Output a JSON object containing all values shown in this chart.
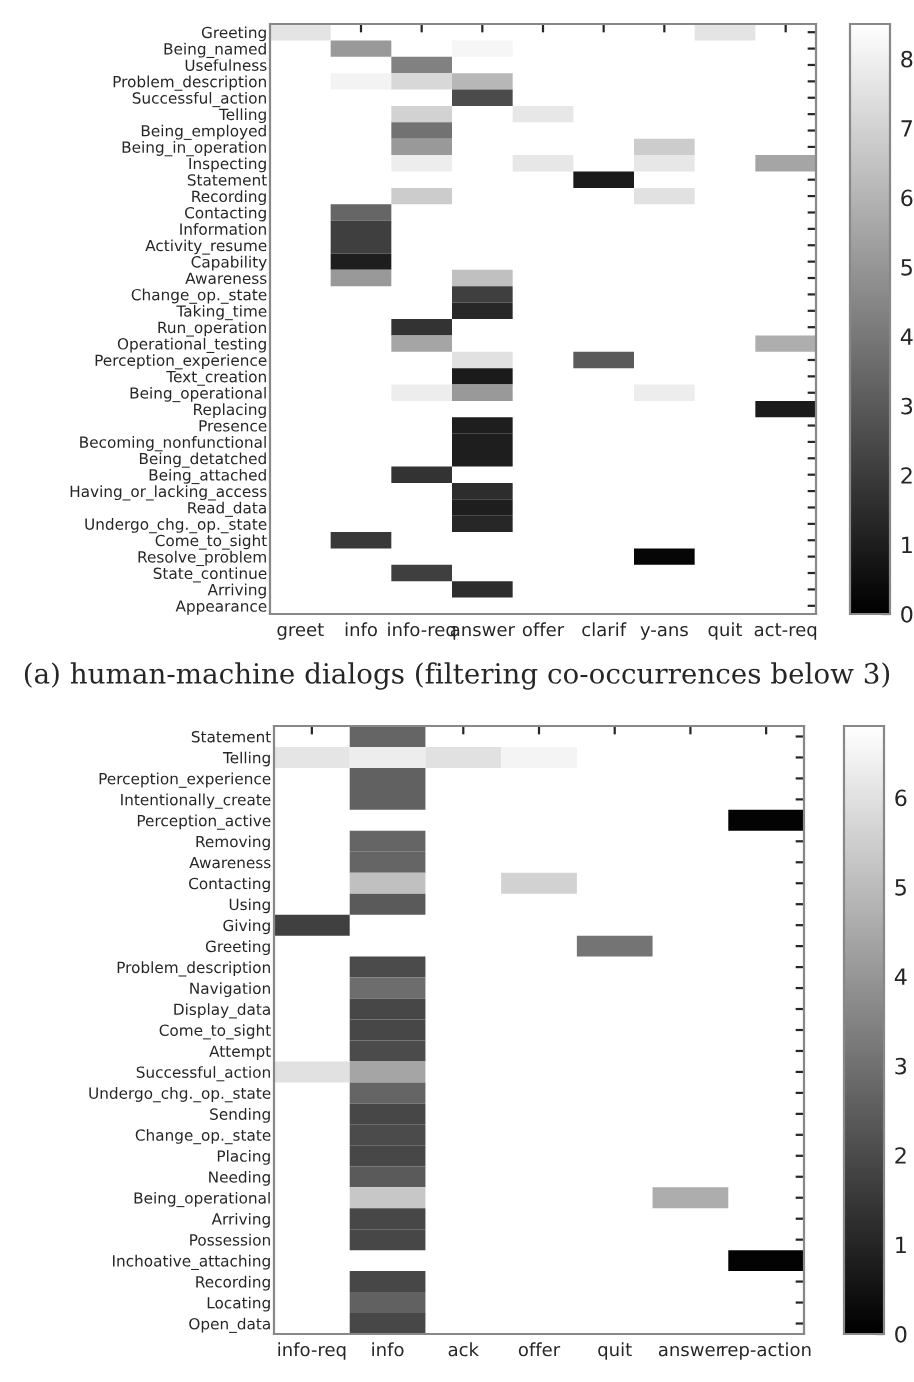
{
  "chart_data": [
    {
      "type": "heatmap",
      "categories": [
        "greet",
        "info",
        "info-req",
        "answer",
        "offer",
        "clarif",
        "y-ans",
        "quit",
        "act-req"
      ],
      "y_categories": [
        "Greeting",
        "Being_named",
        "Usefulness",
        "Problem_description",
        "Successful_action",
        "Telling",
        "Being_employed",
        "Being_in_operation",
        "Inspecting",
        "Statement",
        "Recording",
        "Contacting",
        "Information",
        "Activity_resume",
        "Capability",
        "Awareness",
        "Change_op._state",
        "Taking_time",
        "Run_operation",
        "Operational_testing",
        "Perception_experience",
        "Text_creation",
        "Being_operational",
        "Replacing",
        "Presence",
        "Becoming_nonfunctional",
        "Being_detatched",
        "Being_attached",
        "Having_or_lacking_access",
        "Read_data",
        "Undergo_chg._op._state",
        "Come_to_sight",
        "Resolve_problem",
        "State_continue",
        "Arriving",
        "Appearance"
      ],
      "cells": [
        [
          7.6,
          null,
          null,
          null,
          null,
          null,
          null,
          7.6,
          null
        ],
        [
          null,
          5.1,
          null,
          8.2,
          null,
          null,
          null,
          null,
          null
        ],
        [
          null,
          null,
          4.3,
          null,
          null,
          null,
          null,
          null,
          null
        ],
        [
          null,
          8.1,
          7.2,
          6.1,
          null,
          null,
          null,
          null,
          null
        ],
        [
          null,
          null,
          null,
          2.5,
          null,
          null,
          null,
          null,
          null
        ],
        [
          null,
          null,
          7.0,
          null,
          7.7,
          null,
          null,
          null,
          null
        ],
        [
          null,
          null,
          3.8,
          null,
          null,
          null,
          null,
          null,
          null
        ],
        [
          null,
          null,
          5.1,
          null,
          null,
          null,
          6.8,
          null,
          null
        ],
        [
          null,
          null,
          7.9,
          null,
          7.7,
          null,
          7.7,
          null,
          5.5
        ],
        [
          null,
          null,
          null,
          null,
          null,
          0.9,
          null,
          null,
          null
        ],
        [
          null,
          null,
          6.8,
          null,
          null,
          null,
          7.5,
          null,
          null
        ],
        [
          null,
          3.4,
          null,
          null,
          null,
          null,
          null,
          null,
          null
        ],
        [
          null,
          2.1,
          null,
          null,
          null,
          null,
          null,
          null,
          null
        ],
        [
          null,
          2.1,
          null,
          null,
          null,
          null,
          null,
          null,
          null
        ],
        [
          null,
          1.0,
          null,
          null,
          null,
          null,
          null,
          null,
          null
        ],
        [
          null,
          5.1,
          null,
          6.4,
          null,
          null,
          null,
          null,
          null
        ],
        [
          null,
          null,
          null,
          2.1,
          null,
          null,
          null,
          null,
          null
        ],
        [
          null,
          null,
          null,
          1.3,
          null,
          null,
          null,
          null,
          null
        ],
        [
          null,
          null,
          1.7,
          null,
          null,
          null,
          null,
          null,
          null
        ],
        [
          null,
          null,
          5.5,
          null,
          null,
          null,
          null,
          null,
          5.8
        ],
        [
          null,
          null,
          null,
          7.5,
          null,
          3.0,
          null,
          null,
          null
        ],
        [
          null,
          null,
          null,
          0.9,
          null,
          null,
          null,
          null,
          null
        ],
        [
          null,
          null,
          7.9,
          5.1,
          null,
          null,
          7.9,
          null,
          null
        ],
        [
          null,
          null,
          null,
          null,
          null,
          null,
          null,
          null,
          0.9
        ],
        [
          null,
          null,
          null,
          1.0,
          null,
          null,
          null,
          null,
          null
        ],
        [
          null,
          null,
          null,
          1.0,
          null,
          null,
          null,
          null,
          null
        ],
        [
          null,
          null,
          null,
          1.0,
          null,
          null,
          null,
          null,
          null
        ],
        [
          null,
          null,
          1.7,
          null,
          null,
          null,
          null,
          null,
          null
        ],
        [
          null,
          null,
          null,
          1.5,
          null,
          null,
          null,
          null,
          null
        ],
        [
          null,
          null,
          null,
          1.0,
          null,
          null,
          null,
          null,
          null
        ],
        [
          null,
          null,
          null,
          1.3,
          null,
          null,
          null,
          null,
          null
        ],
        [
          null,
          1.9,
          null,
          null,
          null,
          null,
          null,
          null,
          null
        ],
        [
          null,
          null,
          null,
          null,
          null,
          null,
          0.2,
          null,
          null
        ],
        [
          null,
          null,
          2.1,
          null,
          null,
          null,
          null,
          null,
          null
        ],
        [
          null,
          null,
          null,
          1.5,
          null,
          null,
          null,
          null,
          null
        ],
        [
          null,
          null,
          null,
          null,
          null,
          null,
          null,
          null,
          null
        ]
      ],
      "clim": [
        0,
        8.5
      ],
      "cticks": [
        0,
        1,
        2,
        3,
        4,
        5,
        6,
        7,
        8
      ],
      "annotations": [
        "(a) human-machine dialogs (filtering co-occurrences below 3)"
      ]
    },
    {
      "type": "heatmap",
      "categories": [
        "info-req",
        "info",
        "ack",
        "offer",
        "quit",
        "answer",
        "rep-action"
      ],
      "y_categories": [
        "Statement",
        "Telling",
        "Perception_experience",
        "Intentionally_create",
        "Perception_active",
        "Removing",
        "Awareness",
        "Contacting",
        "Using",
        "Giving",
        "Greeting",
        "Problem_description",
        "Navigation",
        "Display_data",
        "Come_to_sight",
        "Attempt",
        "Successful_action",
        "Undergo_chg._op._state",
        "Sending",
        "Change_op._state",
        "Placing",
        "Needing",
        "Being_operational",
        "Arriving",
        "Possession",
        "Inchoative_attaching",
        "Recording",
        "Locating",
        "Open_data"
      ],
      "cells": [
        [
          null,
          2.7,
          null,
          null,
          null,
          null,
          null
        ],
        [
          6.1,
          6.3,
          6.0,
          6.5,
          null,
          null,
          null
        ],
        [
          null,
          2.6,
          null,
          null,
          null,
          null,
          null
        ],
        [
          null,
          2.6,
          null,
          null,
          null,
          null,
          null
        ],
        [
          null,
          null,
          null,
          null,
          null,
          null,
          0.1
        ],
        [
          null,
          2.7,
          null,
          null,
          null,
          null,
          null
        ],
        [
          null,
          2.7,
          null,
          null,
          null,
          null,
          null
        ],
        [
          null,
          5.1,
          null,
          5.6,
          null,
          null,
          null
        ],
        [
          null,
          2.4,
          null,
          null,
          null,
          null,
          null
        ],
        [
          1.7,
          null,
          null,
          null,
          null,
          null,
          null
        ],
        [
          null,
          null,
          null,
          null,
          3.1,
          null,
          null
        ],
        [
          null,
          2.0,
          null,
          null,
          null,
          null,
          null
        ],
        [
          null,
          2.9,
          null,
          null,
          null,
          null,
          null
        ],
        [
          null,
          1.9,
          null,
          null,
          null,
          null,
          null
        ],
        [
          null,
          1.9,
          null,
          null,
          null,
          null,
          null
        ],
        [
          null,
          2.0,
          null,
          null,
          null,
          null,
          null
        ],
        [
          6.0,
          4.4,
          null,
          null,
          null,
          null,
          null
        ],
        [
          null,
          2.7,
          null,
          null,
          null,
          null,
          null
        ],
        [
          null,
          1.9,
          null,
          null,
          null,
          null,
          null
        ],
        [
          null,
          2.0,
          null,
          null,
          null,
          null,
          null
        ],
        [
          null,
          1.9,
          null,
          null,
          null,
          null,
          null
        ],
        [
          null,
          2.4,
          null,
          null,
          null,
          null,
          null
        ],
        [
          null,
          5.3,
          null,
          null,
          null,
          4.6,
          null
        ],
        [
          null,
          1.9,
          null,
          null,
          null,
          null,
          null
        ],
        [
          null,
          1.9,
          null,
          null,
          null,
          null,
          null
        ],
        [
          null,
          null,
          null,
          null,
          null,
          null,
          0.1
        ],
        [
          null,
          1.9,
          null,
          null,
          null,
          null,
          null
        ],
        [
          null,
          2.6,
          null,
          null,
          null,
          null,
          null
        ],
        [
          null,
          1.9,
          null,
          null,
          null,
          null,
          null
        ]
      ],
      "clim": [
        0,
        6.8
      ],
      "cticks": [
        0,
        1,
        2,
        3,
        4,
        5,
        6
      ]
    }
  ]
}
